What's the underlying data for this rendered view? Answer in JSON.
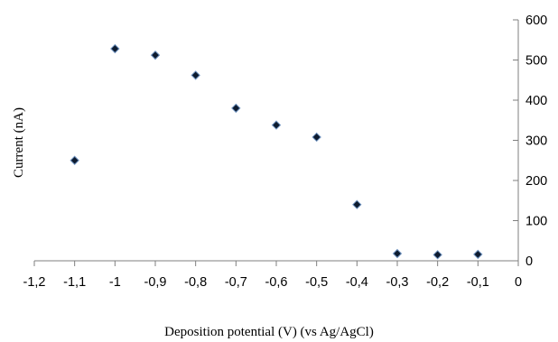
{
  "chart_data": {
    "type": "scatter",
    "title": "",
    "xlabel": "Deposition potential (V) (vs Ag/AgCl)",
    "ylabel": "Current (nA)",
    "xlim": [
      -1.2,
      0
    ],
    "ylim": [
      0,
      600
    ],
    "x_ticks": [
      -1.2,
      -1.1,
      -1.0,
      -0.9,
      -0.8,
      -0.7,
      -0.6,
      -0.5,
      -0.4,
      -0.3,
      -0.2,
      -0.1,
      0
    ],
    "x_tick_labels": [
      "-1,2",
      "-1,1",
      "-1",
      "-0,9",
      "-0,8",
      "-0,7",
      "-0,6",
      "-0,5",
      "-0,4",
      "-0,3",
      "-0,2",
      "-0,1",
      "0"
    ],
    "y_ticks": [
      0,
      100,
      200,
      300,
      400,
      500,
      600
    ],
    "y_tick_labels": [
      "0",
      "100",
      "200",
      "300",
      "400",
      "500",
      "600"
    ],
    "y_axis_position": "right",
    "grid": false,
    "legend": "none",
    "marker": "diamond",
    "marker_color": "#0d1b2f",
    "marker_edge_color": "#6f93c0",
    "series": [
      {
        "x": [
          -1.1,
          -1.0,
          -0.9,
          -0.8,
          -0.7,
          -0.6,
          -0.5,
          -0.4,
          -0.3,
          -0.2,
          -0.1
        ],
        "y": [
          250,
          528,
          512,
          462,
          380,
          338,
          308,
          140,
          18,
          15,
          16
        ]
      }
    ]
  }
}
